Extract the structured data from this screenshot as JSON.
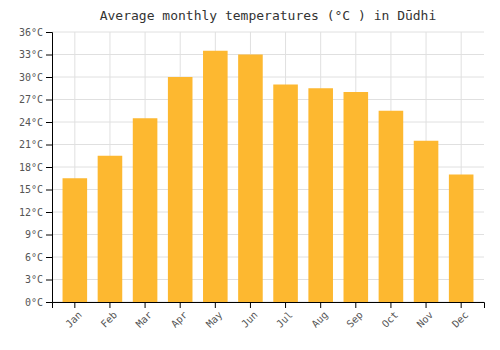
{
  "chart_data": {
    "type": "bar",
    "title": "Average monthly temperatures (°C ) in Dūdhi",
    "categories": [
      "Jan",
      "Feb",
      "Mar",
      "Apr",
      "May",
      "Jun",
      "Jul",
      "Aug",
      "Sep",
      "Oct",
      "Nov",
      "Dec"
    ],
    "values": [
      16.5,
      19.5,
      24.5,
      30.0,
      33.5,
      33.0,
      29.0,
      28.5,
      28.0,
      25.5,
      21.5,
      17.0
    ],
    "color": "#FDB830",
    "ylim": [
      0,
      36
    ],
    "yticks": [
      {
        "value": 0,
        "label": "0°C"
      },
      {
        "value": 3,
        "label": "3°C"
      },
      {
        "value": 6,
        "label": "6°C"
      },
      {
        "value": 9,
        "label": "9°C"
      },
      {
        "value": 12,
        "label": "12°C"
      },
      {
        "value": 15,
        "label": "15°C"
      },
      {
        "value": 18,
        "label": "18°C"
      },
      {
        "value": 21,
        "label": "21°C"
      },
      {
        "value": 24,
        "label": "24°C"
      },
      {
        "value": 27,
        "label": "27°C"
      },
      {
        "value": 30,
        "label": "30°C"
      },
      {
        "value": 33,
        "label": "33°C"
      },
      {
        "value": 36,
        "label": "36°C"
      }
    ],
    "grid": true
  }
}
